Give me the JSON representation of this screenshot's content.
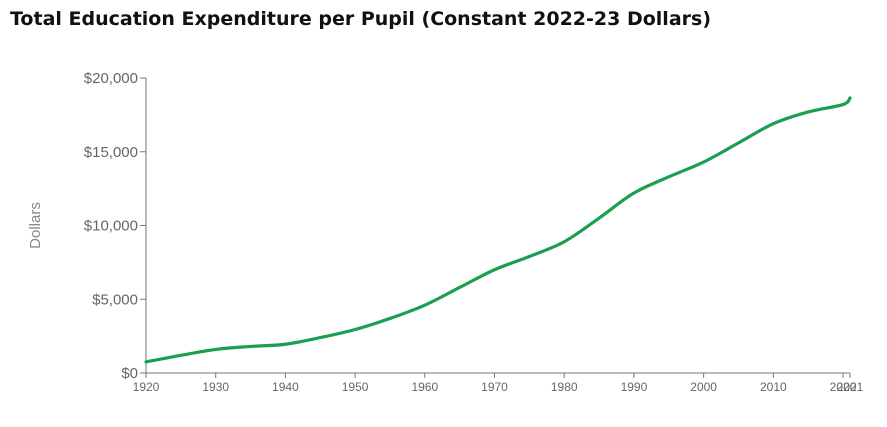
{
  "title": "Total Education Expenditure per Pupil (Constant 2022-23 Dollars)",
  "chart_data": {
    "type": "line",
    "title": "Total Education Expenditure per Pupil (Constant 2022-23 Dollars)",
    "xlabel": "",
    "ylabel": "Dollars",
    "xlim": [
      1920,
      2021
    ],
    "ylim": [
      0,
      20000
    ],
    "x_ticks": [
      1920,
      1930,
      1940,
      1950,
      1960,
      1970,
      1980,
      1990,
      2000,
      2010,
      2020,
      2021
    ],
    "y_ticks": [
      0,
      5000,
      10000,
      15000,
      20000
    ],
    "y_tick_labels": [
      "$0",
      "$5,000",
      "$10,000",
      "$15,000",
      "$20,000"
    ],
    "grid": false,
    "line_color": "#1a9e50",
    "series": [
      {
        "name": "",
        "x": [
          1920,
          1925,
          1930,
          1935,
          1940,
          1945,
          1950,
          1955,
          1960,
          1965,
          1970,
          1975,
          1980,
          1985,
          1990,
          1995,
          2000,
          2005,
          2010,
          2015,
          2020,
          2021
        ],
        "y": [
          750,
          1200,
          1600,
          1800,
          1950,
          2400,
          2950,
          3700,
          4600,
          5800,
          7000,
          7900,
          8900,
          10500,
          12200,
          13300,
          14300,
          15600,
          16900,
          17700,
          18200,
          18650
        ]
      }
    ]
  }
}
